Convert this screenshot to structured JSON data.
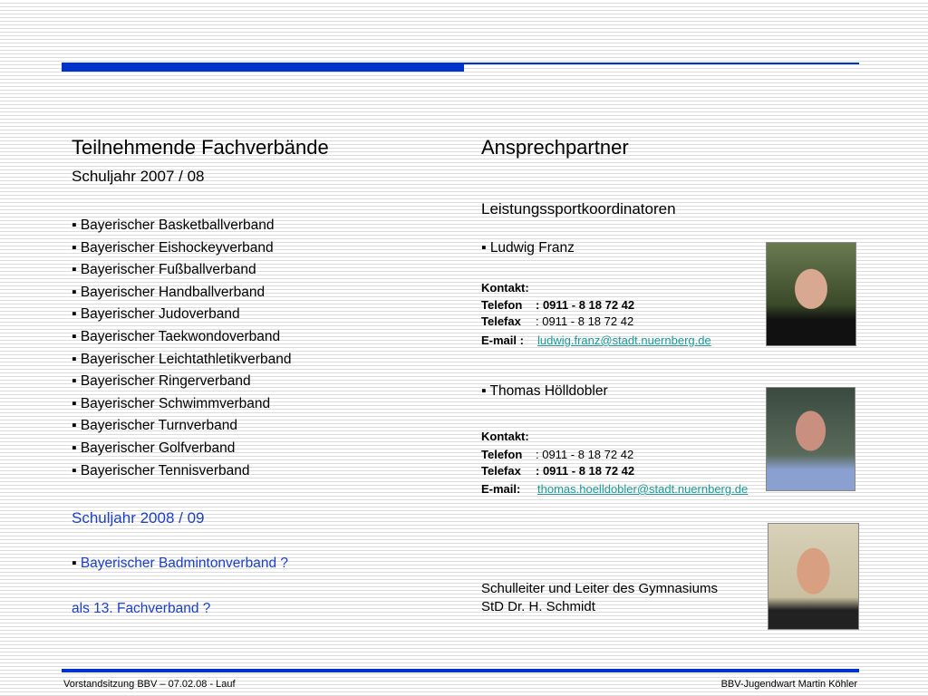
{
  "left": {
    "title": "Teilnehmende Fachverbände",
    "subtitle": "Schuljahr 2007 / 08",
    "items": [
      "Bayerischer Basketballverband",
      "Bayerischer Eishockeyverband",
      "Bayerischer Fußballverband",
      "Bayerischer Handballverband",
      "Bayerischer Judoverband",
      "Bayerischer Taekwondoverband",
      "Bayerischer Leichtathletikverband",
      "Bayerischer Ringerverband",
      "Bayerischer Schwimmverband",
      "Bayerischer Turnverband",
      "Bayerischer Golfverband",
      "Bayerischer Tennisverband"
    ],
    "subtitle2": "Schuljahr 2008 / 09",
    "item2": "Bayerischer Badmintonverband  ?",
    "note": "als 13. Fachverband ?"
  },
  "right": {
    "title": "Ansprechpartner",
    "subtitle": "Leistungssportkoordinatoren",
    "people": [
      {
        "name": "Ludwig Franz",
        "kontakt": "Kontakt:",
        "telefon_label": "Telefon",
        "telefon": ": 0911 - 8 18 72 42",
        "telefax_label": "Telefax",
        "telefax": ":  0911 - 8 18 72 42",
        "email_label": "E-mail :",
        "email": "ludwig.franz@stadt.nuernberg.de"
      },
      {
        "name": "Thomas Hölldobler",
        "kontakt": "Kontakt:",
        "telefon_label": "Telefon",
        "telefon": ": 0911 - 8 18 72 42",
        "telefax_label": "Telefax",
        "telefax": ":  0911 - 8 18 72 42",
        "email_label": "E-mail:",
        "email": "thomas.hoelldobler@stadt.nuernberg.de"
      }
    ],
    "schulleiter1": "Schulleiter und Leiter des Gymnasiums",
    "schulleiter2": "StD Dr. H. Schmidt"
  },
  "footer": {
    "left": "Vorstandsitzung BBV – 07.02.08 - Lauf",
    "right": "BBV-Jugendwart  Martin Köhler"
  },
  "colors": {
    "accent": "#0033cc",
    "link": "#1a9a9a",
    "blue_text": "#1a3fcc"
  }
}
